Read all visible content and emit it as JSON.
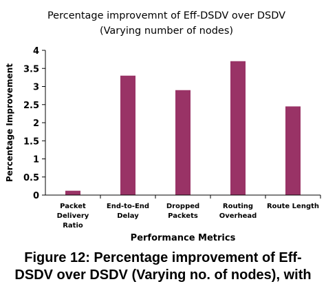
{
  "chart_data": {
    "type": "bar",
    "title": "Percentage improvemnt of Eff-DSDV over DSDV",
    "subtitle": "(Varying number of nodes)",
    "xlabel": "Performance Metrics",
    "ylabel": "Percentage Improvement",
    "categories": [
      [
        "Packet",
        "Delivery",
        "Ratio"
      ],
      [
        "End-to-End",
        "Delay"
      ],
      [
        "Dropped",
        "Packets"
      ],
      [
        "Routing",
        "Overhead"
      ],
      [
        "Route Length"
      ]
    ],
    "values": [
      0.12,
      3.3,
      2.9,
      3.7,
      2.45
    ],
    "ylim": [
      0,
      4
    ],
    "yticks": [
      "0",
      "0.5",
      "1",
      "1.5",
      "2",
      "2.5",
      "3",
      "3.5",
      "4"
    ],
    "bar_color": "#993366",
    "grid": false,
    "legend": "none"
  },
  "caption": {
    "line1": "Figure 12:  Percentage improvement of Eff-",
    "line2": "DSDV over DSDV (Varying no. of nodes),   with"
  }
}
